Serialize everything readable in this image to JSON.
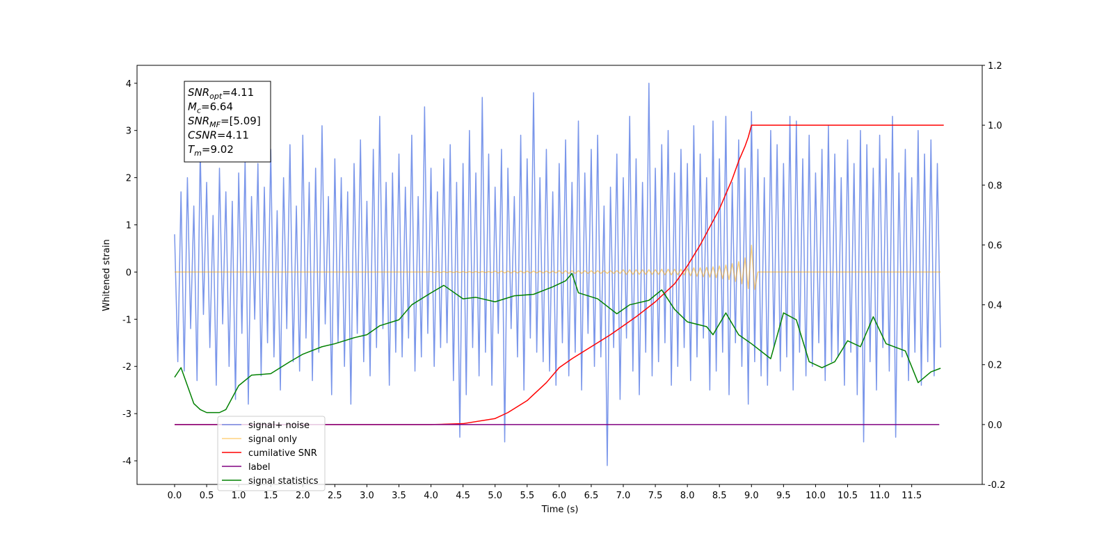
{
  "chart_data": {
    "type": "line",
    "xlabel": "Time (s)",
    "ylabel": "Whitened strain",
    "xlim": [
      -0.586,
      12.6
    ],
    "ylim": [
      -4.5,
      4.38
    ],
    "y2lim": [
      -0.2,
      1.2
    ],
    "xticks": [
      {
        "value": 0,
        "label": "0.0"
      },
      0.5,
      {
        "value": 1,
        "label": "1.0"
      },
      1.5,
      {
        "value": 2,
        "label": "2.0"
      },
      2.5,
      {
        "value": 3,
        "label": "3.0"
      },
      3.5,
      {
        "value": 4,
        "label": "4.0"
      },
      4.5,
      {
        "value": 5,
        "label": "5.0"
      },
      5.5,
      {
        "value": 6,
        "label": "6.0"
      },
      6.5,
      {
        "value": 7,
        "label": "7.0"
      },
      7.5,
      {
        "value": 8,
        "label": "8.0"
      },
      8.5,
      {
        "value": 9,
        "label": "9.0"
      },
      9.5,
      {
        "value": 10,
        "label": "10.0"
      },
      10.5,
      {
        "value": 11,
        "label": "11.0"
      },
      11.5
    ],
    "yticks": [
      -4,
      -3,
      -2,
      -1,
      0,
      1,
      2,
      3,
      4
    ],
    "y2ticks": [
      -0.2,
      {
        "value": 0,
        "label": "0.0"
      },
      0.2,
      0.4,
      0.6,
      0.8,
      {
        "value": 1,
        "label": "1.0"
      },
      1.2
    ],
    "annotations": [
      {
        "text": "SNR",
        "sub": "opt",
        "after": "=4.11"
      },
      {
        "text": "M",
        "sub": "c",
        "after": "=6.64"
      },
      {
        "text": "SNR",
        "sub": "MF",
        "after": "=[5.09]"
      },
      {
        "text": "CSNR",
        "after": "=4.11"
      },
      {
        "text": "T",
        "sub": "m",
        "after": "=9.02"
      }
    ],
    "x": [
      0,
      0.05,
      0.1,
      0.15,
      0.2,
      0.25,
      0.3,
      0.35,
      0.4,
      0.45,
      0.5,
      0.55,
      0.6,
      0.65,
      0.7,
      0.75,
      0.8,
      0.85,
      0.9,
      0.95,
      1,
      1.05,
      1.1,
      1.15,
      1.2,
      1.25,
      1.3,
      1.35,
      1.4,
      1.45,
      1.5,
      1.55,
      1.6,
      1.65,
      1.7,
      1.75,
      1.8,
      1.85,
      1.9,
      1.95,
      2,
      2.05,
      2.1,
      2.15,
      2.2,
      2.25,
      2.3,
      2.35,
      2.4,
      2.45,
      2.5,
      2.55,
      2.6,
      2.65,
      2.7,
      2.75,
      2.8,
      2.85,
      2.9,
      2.95,
      3,
      3.05,
      3.1,
      3.15,
      3.2,
      3.25,
      3.3,
      3.35,
      3.4,
      3.45,
      3.5,
      3.55,
      3.6,
      3.65,
      3.7,
      3.75,
      3.8,
      3.85,
      3.9,
      3.95,
      4,
      4.05,
      4.1,
      4.15,
      4.2,
      4.25,
      4.3,
      4.35,
      4.4,
      4.45,
      4.5,
      4.55,
      4.6,
      4.65,
      4.7,
      4.75,
      4.8,
      4.85,
      4.9,
      4.95,
      5,
      5.05,
      5.1,
      5.15,
      5.2,
      5.25,
      5.3,
      5.35,
      5.4,
      5.45,
      5.5,
      5.55,
      5.6,
      5.65,
      5.7,
      5.75,
      5.8,
      5.85,
      5.9,
      5.95,
      6,
      6.05,
      6.1,
      6.15,
      6.2,
      6.25,
      6.3,
      6.35,
      6.4,
      6.45,
      6.5,
      6.55,
      6.6,
      6.65,
      6.7,
      6.75,
      6.8,
      6.85,
      6.9,
      6.95,
      7,
      7.05,
      7.1,
      7.15,
      7.2,
      7.25,
      7.3,
      7.35,
      7.4,
      7.45,
      7.5,
      7.55,
      7.6,
      7.65,
      7.7,
      7.75,
      7.8,
      7.85,
      7.9,
      7.95,
      8,
      8.05,
      8.1,
      8.15,
      8.2,
      8.25,
      8.3,
      8.35,
      8.4,
      8.45,
      8.5,
      8.55,
      8.6,
      8.65,
      8.7,
      8.75,
      8.8,
      8.85,
      8.9,
      8.95,
      9,
      9.05,
      9.1,
      9.15,
      9.2,
      9.25,
      9.3,
      9.35,
      9.4,
      9.45,
      9.5,
      9.55,
      9.6,
      9.65,
      9.7,
      9.75,
      9.8,
      9.85,
      9.9,
      9.95,
      10,
      10.05,
      10.1,
      10.15,
      10.2,
      10.25,
      10.3,
      10.35,
      10.4,
      10.45,
      10.5,
      10.55,
      10.6,
      10.65,
      10.7,
      10.75,
      10.8,
      10.85,
      10.9,
      10.95,
      11,
      11.05,
      11.1,
      11.15,
      11.2,
      11.25,
      11.3,
      11.35,
      11.4,
      11.45,
      11.5,
      11.55,
      11.6,
      11.65,
      11.7,
      11.75,
      11.8,
      11.85,
      11.9,
      11.95
    ],
    "series": [
      {
        "name": "signal+ noise",
        "color": "#4169e1",
        "opacity": 0.7,
        "axis": "y",
        "values": [
          0.8,
          -1.9,
          1.7,
          -2.1,
          2.0,
          -1.2,
          1.4,
          -2.3,
          2.6,
          -0.9,
          1.9,
          -1.6,
          1.2,
          -2.4,
          2.2,
          -1.1,
          1.7,
          -2.0,
          1.5,
          -2.7,
          2.1,
          -1.3,
          2.4,
          -2.8,
          1.6,
          -1.0,
          2.3,
          -2.2,
          1.8,
          -1.5,
          2.6,
          -1.8,
          1.3,
          -2.5,
          2.0,
          -1.2,
          2.7,
          -1.9,
          1.4,
          -2.1,
          2.9,
          -1.4,
          1.9,
          -2.3,
          2.2,
          -1.7,
          3.1,
          -1.1,
          1.6,
          -2.6,
          2.4,
          -1.5,
          2.0,
          -2.0,
          1.7,
          -2.8,
          2.3,
          -1.3,
          2.8,
          -1.9,
          1.5,
          -2.2,
          2.6,
          -1.6,
          3.3,
          -1.2,
          1.9,
          -2.4,
          2.1,
          -1.7,
          2.5,
          -1.8,
          1.8,
          -1.4,
          2.9,
          -2.1,
          1.6,
          -1.8,
          3.5,
          -1.3,
          2.2,
          -2.0,
          1.7,
          -1.6,
          2.4,
          -1.5,
          2.7,
          -2.3,
          1.9,
          -3.5,
          2.3,
          -2.6,
          3.0,
          -1.6,
          2.1,
          -2.2,
          3.7,
          -1.7,
          2.5,
          -2.4,
          1.8,
          -1.3,
          2.6,
          -3.6,
          2.2,
          -1.2,
          1.6,
          -1.8,
          2.9,
          -2.5,
          2.4,
          -1.4,
          3.8,
          -1.7,
          2.0,
          -1.9,
          2.6,
          -2.1,
          1.7,
          -2.4,
          2.3,
          -1.5,
          2.8,
          -2.2,
          1.9,
          -1.7,
          3.2,
          -2.5,
          2.1,
          -1.3,
          2.6,
          -2.0,
          2.9,
          -1.8,
          1.4,
          -4.1,
          1.8,
          -1.6,
          2.5,
          -2.7,
          2.0,
          -1.4,
          3.3,
          -2.1,
          2.4,
          -2.6,
          1.9,
          -1.7,
          4.0,
          -2.2,
          2.2,
          -1.9,
          2.7,
          -1.5,
          3.0,
          -2.4,
          2.1,
          -2.0,
          2.6,
          -1.6,
          2.3,
          -2.3,
          3.1,
          -1.8,
          2.5,
          -1.4,
          2.0,
          -2.5,
          3.2,
          -2.1,
          2.4,
          -1.7,
          3.3,
          -2.6,
          1.9,
          -1.5,
          2.8,
          -2.0,
          2.2,
          -2.8,
          3.4,
          -1.9,
          2.6,
          -2.2,
          2.0,
          -2.4,
          3.0,
          -1.6,
          2.7,
          -2.1,
          2.3,
          -1.8,
          3.3,
          -2.5,
          3.2,
          -1.7,
          2.4,
          -2.2,
          2.9,
          -2.0,
          2.1,
          -1.5,
          2.6,
          -2.3,
          3.1,
          -1.9,
          2.5,
          -1.8,
          2.0,
          -2.4,
          2.8,
          -1.7,
          2.3,
          -2.6,
          3.0,
          -3.6,
          2.7,
          -1.9,
          2.2,
          -2.5,
          2.9,
          -1.6,
          2.4,
          -2.1,
          3.3,
          -3.5,
          2.1,
          -1.8,
          2.6,
          -2.3,
          2.0,
          -1.7,
          3.0,
          -2.4,
          2.5,
          -1.9,
          2.8,
          -2.2,
          2.3,
          -1.6
        ]
      },
      {
        "name": "signal only",
        "color": "#ffa500",
        "opacity": 0.5,
        "axis": "y",
        "values": [
          0,
          0,
          0,
          0,
          0,
          0,
          0,
          0,
          0,
          0,
          0,
          0,
          0,
          0,
          0,
          0,
          0,
          0,
          0,
          0,
          0,
          0,
          0,
          0,
          0,
          0,
          0,
          0,
          0,
          0,
          0,
          0,
          0,
          0,
          0,
          0,
          0,
          0,
          0,
          0,
          0,
          0,
          0,
          0,
          0,
          0,
          0,
          0,
          0,
          0,
          0,
          0,
          0,
          0,
          0,
          0,
          0,
          0,
          0,
          0,
          0,
          0,
          0,
          0,
          0,
          0,
          0,
          0,
          0,
          0,
          0,
          0,
          0,
          0,
          0,
          0,
          0,
          0,
          0,
          0,
          0.01,
          -0.01,
          0.01,
          -0.01,
          0.01,
          -0.01,
          0.01,
          -0.01,
          0.01,
          -0.01,
          0.01,
          -0.01,
          0.01,
          -0.01,
          0.01,
          -0.01,
          0.01,
          -0.01,
          0.01,
          -0.01,
          0.02,
          -0.02,
          0.02,
          -0.02,
          0.02,
          -0.02,
          0.02,
          -0.02,
          0.02,
          -0.02,
          0.02,
          -0.02,
          0.02,
          -0.02,
          0.02,
          -0.02,
          0.02,
          -0.02,
          0.02,
          -0.02,
          0.03,
          -0.03,
          0.03,
          -0.03,
          0.03,
          -0.03,
          0.03,
          -0.03,
          0.03,
          -0.03,
          0.03,
          -0.03,
          0.03,
          -0.03,
          0.03,
          -0.03,
          0.03,
          -0.03,
          0.03,
          -0.03,
          0.05,
          -0.05,
          0.05,
          -0.05,
          0.05,
          -0.05,
          0.05,
          -0.05,
          0.05,
          -0.05,
          0.05,
          -0.05,
          0.06,
          -0.06,
          0.06,
          -0.06,
          0.06,
          -0.06,
          0.06,
          -0.06,
          0.08,
          -0.08,
          0.09,
          -0.09,
          0.09,
          -0.1,
          0.1,
          -0.11,
          0.11,
          -0.12,
          0.13,
          -0.14,
          0.15,
          -0.16,
          0.18,
          -0.2,
          0.22,
          -0.25,
          0.3,
          -0.35,
          0.57,
          -0.37,
          0,
          0,
          0,
          0,
          0,
          0,
          0,
          0,
          0,
          0,
          0,
          0,
          0,
          0,
          0,
          0,
          0,
          0,
          0,
          0,
          0,
          0,
          0,
          0,
          0,
          0,
          0,
          0,
          0,
          0,
          0,
          0,
          0,
          0,
          0,
          0,
          0,
          0,
          0,
          0,
          0,
          0,
          0,
          0,
          0,
          0,
          0,
          0,
          0,
          0,
          0,
          0,
          0,
          0,
          0,
          0,
          0,
          0
        ]
      },
      {
        "name": "cumilative SNR",
        "color": "#ff0000",
        "opacity": 1,
        "axis": "y2",
        "x": [
          0,
          4.0,
          4.2,
          4.5,
          5.0,
          5.2,
          5.5,
          5.8,
          6.0,
          6.2,
          6.5,
          6.8,
          7.0,
          7.2,
          7.5,
          7.8,
          8.0,
          8.2,
          8.5,
          8.7,
          8.8,
          8.9,
          8.95,
          9.0,
          9.02,
          12.0
        ],
        "values": [
          0,
          0,
          0.001,
          0.003,
          0.02,
          0.04,
          0.08,
          0.14,
          0.19,
          0.22,
          0.26,
          0.3,
          0.33,
          0.36,
          0.41,
          0.47,
          0.53,
          0.6,
          0.72,
          0.82,
          0.88,
          0.93,
          0.96,
          1.0,
          1.0,
          1.0
        ]
      },
      {
        "name": "label",
        "color": "#800080",
        "opacity": 1,
        "axis": "y2",
        "x": [
          0,
          11.93
        ],
        "values": [
          0,
          0
        ]
      },
      {
        "name": "signal statistics",
        "color": "#008000",
        "opacity": 1,
        "axis": "y2",
        "x": [
          0,
          0.1,
          0.2,
          0.3,
          0.4,
          0.5,
          0.7,
          0.8,
          1.0,
          1.2,
          1.5,
          1.8,
          2.0,
          2.3,
          2.5,
          2.8,
          3.0,
          3.2,
          3.5,
          3.7,
          4.0,
          4.2,
          4.5,
          4.7,
          5.0,
          5.3,
          5.6,
          5.9,
          6.1,
          6.2,
          6.3,
          6.6,
          6.9,
          7.1,
          7.4,
          7.6,
          7.8,
          8.0,
          8.3,
          8.4,
          8.6,
          8.8,
          9.0,
          9.3,
          9.5,
          9.7,
          9.9,
          10.1,
          10.3,
          10.5,
          10.7,
          10.9,
          11.1,
          11.4,
          11.6,
          11.8,
          11.95
        ],
        "values": [
          0.158,
          0.19,
          0.13,
          0.07,
          0.05,
          0.04,
          0.04,
          0.05,
          0.13,
          0.165,
          0.17,
          0.21,
          0.235,
          0.26,
          0.27,
          0.29,
          0.3,
          0.33,
          0.35,
          0.4,
          0.44,
          0.465,
          0.42,
          0.425,
          0.41,
          0.43,
          0.435,
          0.46,
          0.48,
          0.505,
          0.44,
          0.42,
          0.37,
          0.4,
          0.415,
          0.45,
          0.385,
          0.343,
          0.327,
          0.3,
          0.373,
          0.3,
          0.27,
          0.22,
          0.373,
          0.35,
          0.21,
          0.19,
          0.21,
          0.28,
          0.26,
          0.36,
          0.27,
          0.246,
          0.14,
          0.176,
          0.188
        ]
      }
    ]
  }
}
